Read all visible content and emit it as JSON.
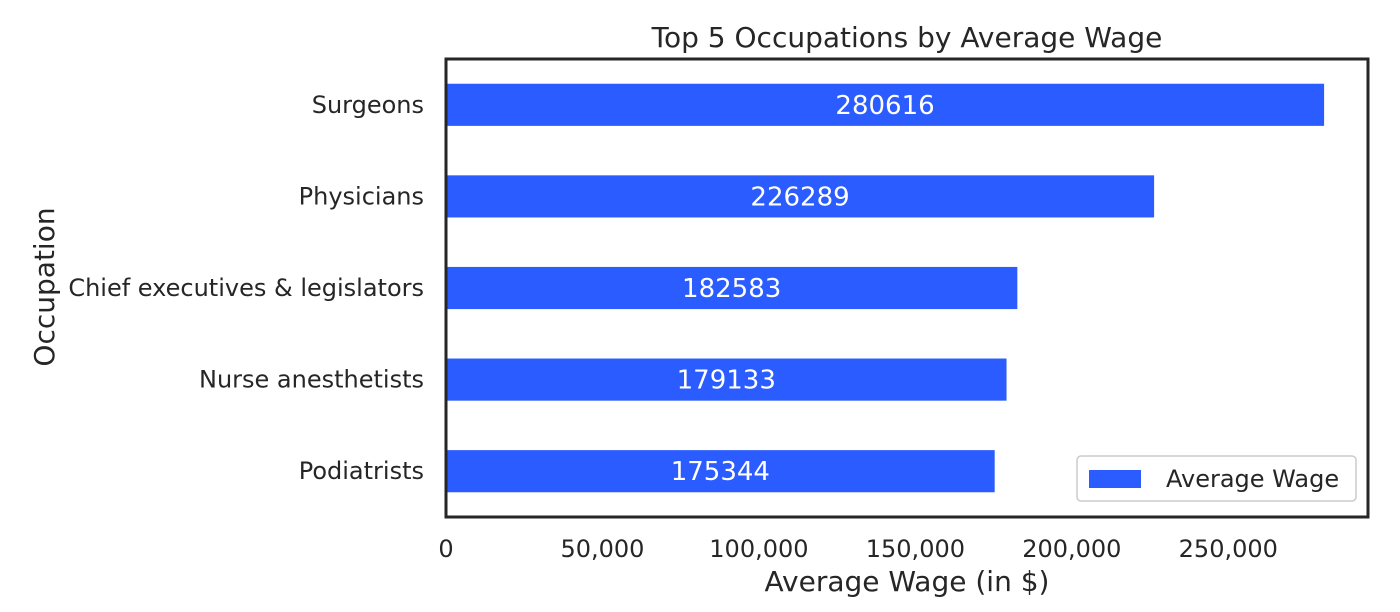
{
  "chart_data": {
    "type": "bar",
    "orientation": "horizontal",
    "title": "Top 5 Occupations by Average Wage",
    "xlabel": "Average Wage (in $)",
    "ylabel": "Occupation",
    "categories": [
      "Surgeons",
      "Physicians",
      "Chief executives & legislators",
      "Nurse anesthetists",
      "Podiatrists"
    ],
    "series": [
      {
        "name": "Average Wage",
        "values": [
          280616,
          226289,
          182583,
          179133,
          175344
        ],
        "color": "#2b5cff"
      }
    ],
    "data_labels": [
      "280616",
      "226289",
      "182583",
      "179133",
      "175344"
    ],
    "x_ticks": [
      0,
      50000,
      100000,
      150000,
      200000,
      250000
    ],
    "x_tick_labels": [
      "0",
      "50,000",
      "100,000",
      "150,000",
      "200,000",
      "250,000"
    ],
    "xlim": [
      0,
      294647
    ],
    "grid": false,
    "legend": {
      "position": "lower-right",
      "labels": [
        "Average Wage"
      ]
    },
    "colors": {
      "bar": "#2b5cff",
      "data_label": "#ffffff",
      "text": "#262626",
      "axes": "#262626",
      "legend_border": "#cccccc"
    }
  }
}
